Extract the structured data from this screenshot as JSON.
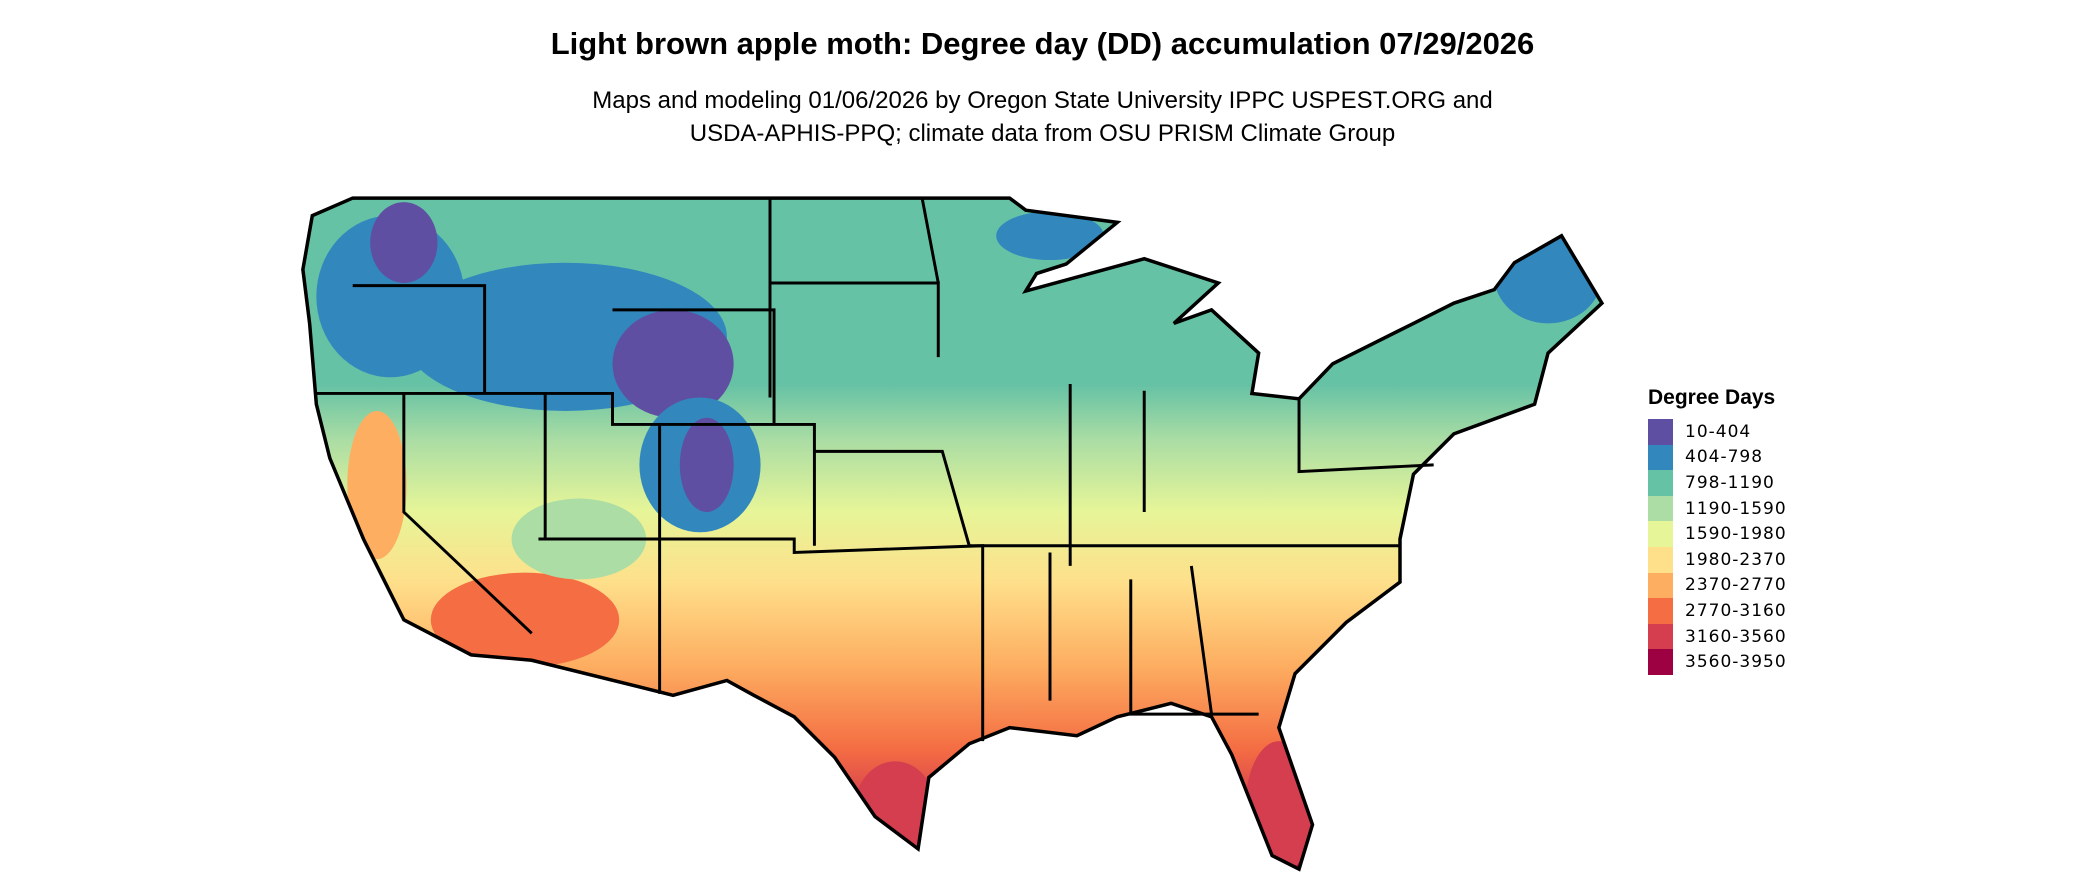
{
  "chart_data": {
    "type": "heatmap",
    "title": "Light brown apple moth: Degree day (DD) accumulation 07/29/2026",
    "subtitle_lines": [
      "Maps and modeling 01/06/2026 by Oregon State University IPPC USPEST.ORG and",
      "USDA-APHIS-PPQ; climate data from OSU PRISM Climate Group"
    ],
    "region": "Contiguous United States",
    "legend": {
      "title": "Degree Days",
      "placement": "right",
      "classes": [
        {
          "label": "10-404",
          "color": "#5e4fa2"
        },
        {
          "label": "404-798",
          "color": "#3288bd"
        },
        {
          "label": "798-1190",
          "color": "#66c2a5"
        },
        {
          "label": "1190-1590",
          "color": "#abdda4"
        },
        {
          "label": "1590-1980",
          "color": "#e6f598"
        },
        {
          "label": "1980-2370",
          "color": "#fee08b"
        },
        {
          "label": "2370-2770",
          "color": "#fdae61"
        },
        {
          "label": "2770-3160",
          "color": "#f46d43"
        },
        {
          "label": "3160-3560",
          "color": "#d53e4f"
        },
        {
          "label": "3560-3950",
          "color": "#9e0142"
        }
      ]
    }
  }
}
